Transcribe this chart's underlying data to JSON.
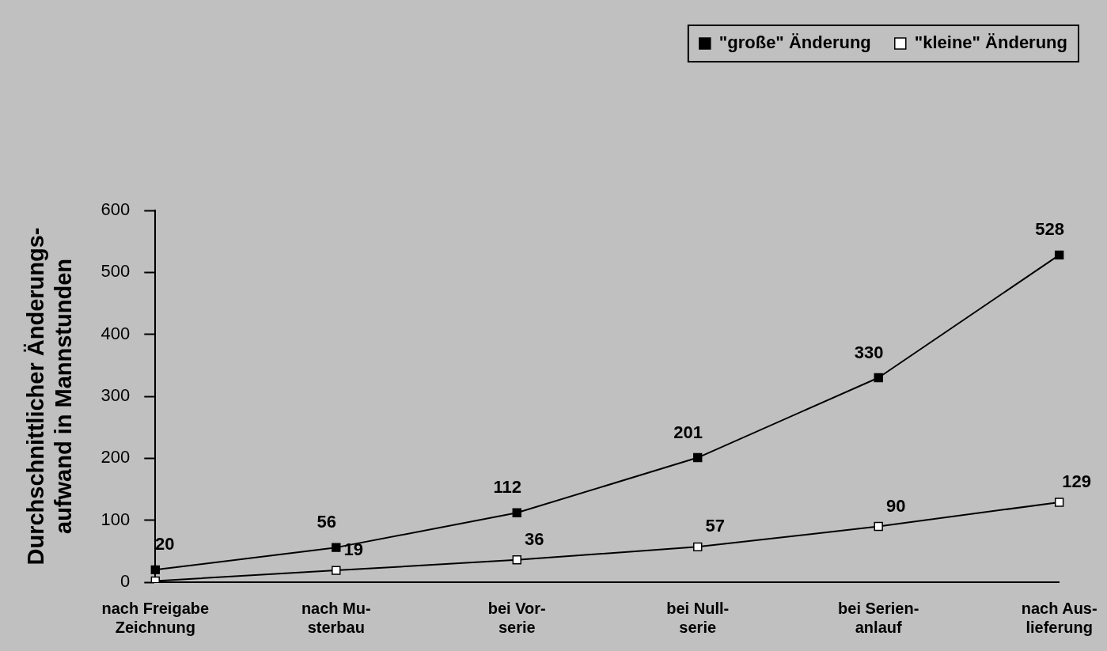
{
  "chart_data": {
    "type": "line",
    "ylabel": "Durchschnittlicher Änderungs-\naufwand in Mannstunden",
    "categories": [
      "nach Freigabe\nZeichnung",
      "nach Mu-\nsterbau",
      "bei Vor-\nserie",
      "bei Null-\nserie",
      "bei Serien-\nanlauf",
      "nach Aus-\nlieferung"
    ],
    "series": [
      {
        "name": "\"große\" Änderung",
        "color": "#000000",
        "values": [
          20,
          56,
          112,
          201,
          330,
          528
        ],
        "value_labels": [
          "20",
          "56",
          "112",
          "201",
          "330",
          "528"
        ]
      },
      {
        "name": "\"kleine\" Änderung",
        "color": "#ffffff",
        "values": [
          2,
          19,
          36,
          57,
          90,
          129
        ],
        "value_labels": [
          null,
          "19",
          "36",
          "57",
          "90",
          "129"
        ]
      }
    ],
    "ylim": [
      0,
      600
    ],
    "yticks": [
      0,
      100,
      200,
      300,
      400,
      500,
      600
    ],
    "grid": false,
    "legend": "top right",
    "marker": "square",
    "line_style": "solid"
  }
}
